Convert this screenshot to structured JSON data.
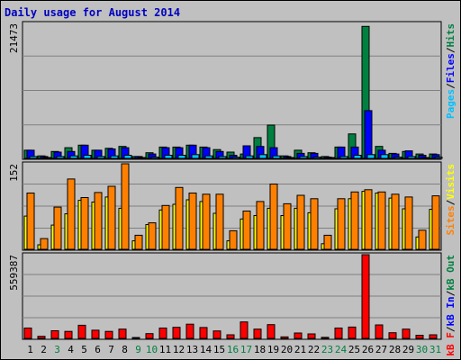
{
  "title": "Daily usage for August 2014",
  "colors": {
    "background": "#c0c0c0",
    "plot_bg": "#c0c0c0",
    "title": "#0000c0",
    "gridline": "#808080",
    "hits": "#008040",
    "files": "#0000ff",
    "pages": "#00c0ff",
    "visits": "#ffff00",
    "sites": "#ff8000",
    "kbin": "#0000ff",
    "kbout": "#008040",
    "kbf": "#ff0000",
    "weekday": "#000000",
    "weekend": "#008040"
  },
  "chart_data": [
    {
      "type": "bar",
      "name": "hits-files-pages",
      "ymax_label": "21473",
      "ylim": [
        0,
        21473
      ],
      "right_labels": [
        {
          "text": "Pages",
          "color": "#00c0ff"
        },
        {
          "text": "Files",
          "color": "#0000ff"
        },
        {
          "text": "Hits",
          "color": "#008040"
        }
      ],
      "separator": "/",
      "series": [
        {
          "name": "Hits",
          "color": "#008040",
          "values": [
            1300,
            400,
            1100,
            1700,
            2100,
            1300,
            1600,
            1900,
            300,
            900,
            1800,
            1800,
            2100,
            1800,
            1400,
            1000,
            700,
            3300,
            5300,
            400,
            1300,
            900,
            300,
            1800,
            3900,
            21000,
            1900,
            800,
            1100,
            700,
            700
          ]
        },
        {
          "name": "Files",
          "color": "#0000ff",
          "values": [
            1300,
            300,
            1000,
            1100,
            2100,
            1300,
            1500,
            1700,
            300,
            700,
            1700,
            1700,
            2100,
            1700,
            1100,
            500,
            2000,
            1900,
            1700,
            300,
            800,
            800,
            200,
            1800,
            1800,
            7600,
            1300,
            700,
            1200,
            500,
            600
          ]
        },
        {
          "name": "Pages",
          "color": "#00c0ff",
          "values": [
            300,
            100,
            300,
            400,
            500,
            300,
            400,
            500,
            100,
            200,
            500,
            500,
            600,
            400,
            300,
            200,
            400,
            600,
            400,
            100,
            300,
            200,
            100,
            300,
            500,
            600,
            600,
            200,
            300,
            100,
            200
          ]
        }
      ]
    },
    {
      "type": "bar",
      "name": "visits-sites",
      "ymax_label": "152",
      "ylim": [
        0,
        152
      ],
      "right_labels": [
        {
          "text": "Sites",
          "color": "#ff8000"
        },
        {
          "text": "Visits",
          "color": "#ffff00"
        }
      ],
      "separator": "/",
      "series": [
        {
          "name": "Visits",
          "color": "#ffff00",
          "values": [
            59,
            8,
            43,
            63,
            87,
            84,
            93,
            73,
            15,
            44,
            70,
            80,
            88,
            85,
            64,
            15,
            54,
            60,
            73,
            60,
            73,
            65,
            10,
            72,
            90,
            103,
            100,
            91,
            72,
            22,
            71
          ]
        },
        {
          "name": "Sites",
          "color": "#ff8000",
          "values": [
            100,
            19,
            75,
            125,
            92,
            101,
            112,
            155,
            25,
            47,
            78,
            110,
            100,
            98,
            98,
            33,
            68,
            85,
            116,
            81,
            96,
            90,
            25,
            90,
            102,
            106,
            102,
            98,
            93,
            34,
            95
          ]
        }
      ]
    },
    {
      "type": "bar",
      "name": "kbf-kbin-kbout",
      "ymax_label": "559387",
      "ylim": [
        0,
        559387
      ],
      "right_labels": [
        {
          "text": "kB F",
          "color": "#ff0000"
        },
        {
          "text": "kB In",
          "color": "#0000ff"
        },
        {
          "text": "kB Out",
          "color": "#008040"
        }
      ],
      "separator": "/",
      "series": [
        {
          "name": "kB F",
          "color": "#ff0000",
          "values": [
            69000,
            14000,
            51000,
            47000,
            88000,
            55000,
            47000,
            62000,
            4000,
            32000,
            69000,
            74000,
            95000,
            73000,
            50000,
            24000,
            110000,
            62000,
            92000,
            10000,
            36000,
            30000,
            7000,
            69000,
            76000,
            560000,
            90000,
            38000,
            62000,
            21000,
            24000
          ]
        }
      ]
    }
  ],
  "x_ticks": [
    {
      "label": "1",
      "weekend": false
    },
    {
      "label": "2",
      "weekend": false
    },
    {
      "label": "3",
      "weekend": true
    },
    {
      "label": "4",
      "weekend": false
    },
    {
      "label": "5",
      "weekend": false
    },
    {
      "label": "6",
      "weekend": false
    },
    {
      "label": "7",
      "weekend": false
    },
    {
      "label": "8",
      "weekend": false
    },
    {
      "label": "9",
      "weekend": true
    },
    {
      "label": "10",
      "weekend": true
    },
    {
      "label": "11",
      "weekend": false
    },
    {
      "label": "12",
      "weekend": false
    },
    {
      "label": "13",
      "weekend": false
    },
    {
      "label": "14",
      "weekend": false
    },
    {
      "label": "15",
      "weekend": false
    },
    {
      "label": "16",
      "weekend": true
    },
    {
      "label": "17",
      "weekend": true
    },
    {
      "label": "18",
      "weekend": false
    },
    {
      "label": "19",
      "weekend": false
    },
    {
      "label": "20",
      "weekend": false
    },
    {
      "label": "21",
      "weekend": false
    },
    {
      "label": "22",
      "weekend": false
    },
    {
      "label": "23",
      "weekend": true
    },
    {
      "label": "24",
      "weekend": true
    },
    {
      "label": "25",
      "weekend": false
    },
    {
      "label": "26",
      "weekend": false
    },
    {
      "label": "27",
      "weekend": false
    },
    {
      "label": "28",
      "weekend": false
    },
    {
      "label": "29",
      "weekend": false
    },
    {
      "label": "30",
      "weekend": true
    },
    {
      "label": "31",
      "weekend": true
    }
  ]
}
